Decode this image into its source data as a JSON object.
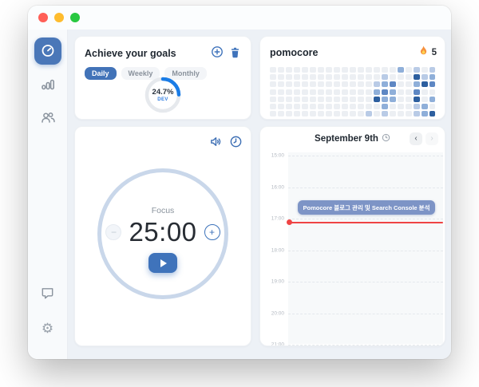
{
  "window": {
    "traffic_lights": [
      {
        "name": "close",
        "color": "#ff5f57"
      },
      {
        "name": "minimize",
        "color": "#febc2e"
      },
      {
        "name": "zoom",
        "color": "#28c840"
      }
    ]
  },
  "sidebar": {
    "items": [
      {
        "id": "timer",
        "icon": "pomodoro-timer-icon",
        "active": true
      },
      {
        "id": "stats",
        "icon": "bar-chart-icon",
        "active": false
      },
      {
        "id": "team",
        "icon": "users-icon",
        "active": false
      }
    ],
    "bottom_items": [
      {
        "id": "feedback",
        "icon": "chat-bubble-icon"
      },
      {
        "id": "settings",
        "icon": "gear-icon"
      }
    ]
  },
  "goals_card": {
    "title": "Achieve your goals",
    "actions": [
      {
        "id": "add-goal",
        "icon": "circle-plus-icon"
      },
      {
        "id": "delete-goal",
        "icon": "trash-icon"
      }
    ],
    "tabs": [
      {
        "label": "Daily",
        "active": true
      },
      {
        "label": "Weekly",
        "active": false
      },
      {
        "label": "Monthly",
        "active": false
      }
    ],
    "progress": {
      "percent_label": "24.7%",
      "value": 24.7,
      "tag": "DEV",
      "arc_color": "#1a7ce6",
      "track_color": "#e6e9ed"
    }
  },
  "streak_card": {
    "title": "pomocore",
    "streak": {
      "icon": "flame-icon",
      "count": "5"
    },
    "heatmap": {
      "levels": [
        "#eceff3",
        "#b9cbe6",
        "#8fafd9",
        "#5e87c3",
        "#2d5f9f"
      ],
      "cells": [
        [
          0,
          0,
          0,
          0,
          0,
          0,
          0,
          0,
          0,
          0,
          0,
          0,
          0,
          0,
          0,
          0,
          2,
          0,
          1,
          0,
          1
        ],
        [
          0,
          0,
          0,
          0,
          0,
          0,
          0,
          0,
          0,
          0,
          0,
          0,
          0,
          0,
          1,
          0,
          0,
          0,
          4,
          1,
          2
        ],
        [
          0,
          0,
          0,
          0,
          0,
          0,
          0,
          0,
          0,
          0,
          0,
          0,
          0,
          1,
          2,
          3,
          0,
          0,
          2,
          4,
          3
        ],
        [
          0,
          0,
          0,
          0,
          0,
          0,
          0,
          0,
          0,
          0,
          0,
          0,
          0,
          2,
          3,
          2,
          0,
          0,
          3,
          0,
          0
        ],
        [
          0,
          0,
          0,
          0,
          0,
          0,
          0,
          0,
          0,
          0,
          0,
          0,
          0,
          4,
          2,
          2,
          0,
          0,
          4,
          0,
          2
        ],
        [
          0,
          0,
          0,
          0,
          0,
          0,
          0,
          0,
          0,
          0,
          0,
          0,
          0,
          0,
          2,
          0,
          0,
          0,
          1,
          2,
          0
        ],
        [
          0,
          0,
          0,
          0,
          0,
          0,
          0,
          0,
          0,
          0,
          0,
          0,
          1,
          0,
          1,
          0,
          0,
          0,
          1,
          2,
          4
        ]
      ]
    }
  },
  "timer_card": {
    "header_icons": [
      {
        "id": "sound",
        "icon": "speaker-icon"
      },
      {
        "id": "time-settings",
        "icon": "clock-icon"
      }
    ],
    "mode_label": "Focus",
    "time": "25:00",
    "decrease_label": "−",
    "increase_label": "+",
    "play_icon": "play-icon"
  },
  "calendar_card": {
    "title": "September 9th",
    "title_icon": "clock-icon",
    "nav": {
      "prev": "‹",
      "next": "›"
    },
    "hours": [
      "15:00",
      "16:00",
      "17:00",
      "18:00",
      "19:00",
      "20:00",
      "21:00"
    ],
    "event": {
      "label": "Pomocore 블로그 관리 및 Search Console 분석",
      "start": "16:30",
      "end": "17:00",
      "color": "#7d94c6"
    },
    "now_line_color": "#ef4444"
  },
  "colors": {
    "accent_blue": "#3f73bb",
    "sidebar_active_bg": "#4a77b8",
    "main_bg": "#edf1f6",
    "sidebar_bg": "#f8fafc",
    "card_bg": "#ffffff",
    "timer_ring": "#c9d7ea"
  }
}
